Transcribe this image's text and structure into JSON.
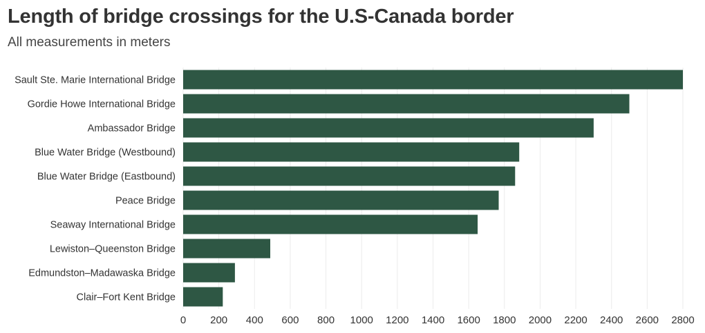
{
  "chart_data": {
    "type": "bar",
    "orientation": "horizontal",
    "title": "Length of bridge crossings for the U.S-Canada border",
    "subtitle": "All measurements in meters",
    "categories": [
      "Sault Ste. Marie International Bridge",
      "Gordie Howe International Bridge",
      "Ambassador Bridge",
      "Blue Water Bridge (Westbound)",
      "Blue Water Bridge (Eastbound)",
      "Peace Bridge",
      "Seaway International Bridge",
      "Lewiston–Queenston Bridge",
      "Edmundston–Madawaska Bridge",
      "Clair–Fort Kent Bridge"
    ],
    "values": [
      2800,
      2500,
      2300,
      1883,
      1860,
      1768,
      1650,
      488,
      290,
      222
    ],
    "xlim": [
      0,
      2800
    ],
    "xticks": [
      0,
      200,
      400,
      600,
      800,
      1000,
      1200,
      1400,
      1600,
      1800,
      2000,
      2200,
      2400,
      2600,
      2800
    ],
    "grid": true,
    "bar_color": "#2e5744",
    "grid_color": "#ebebeb",
    "text_color": "#333333"
  }
}
